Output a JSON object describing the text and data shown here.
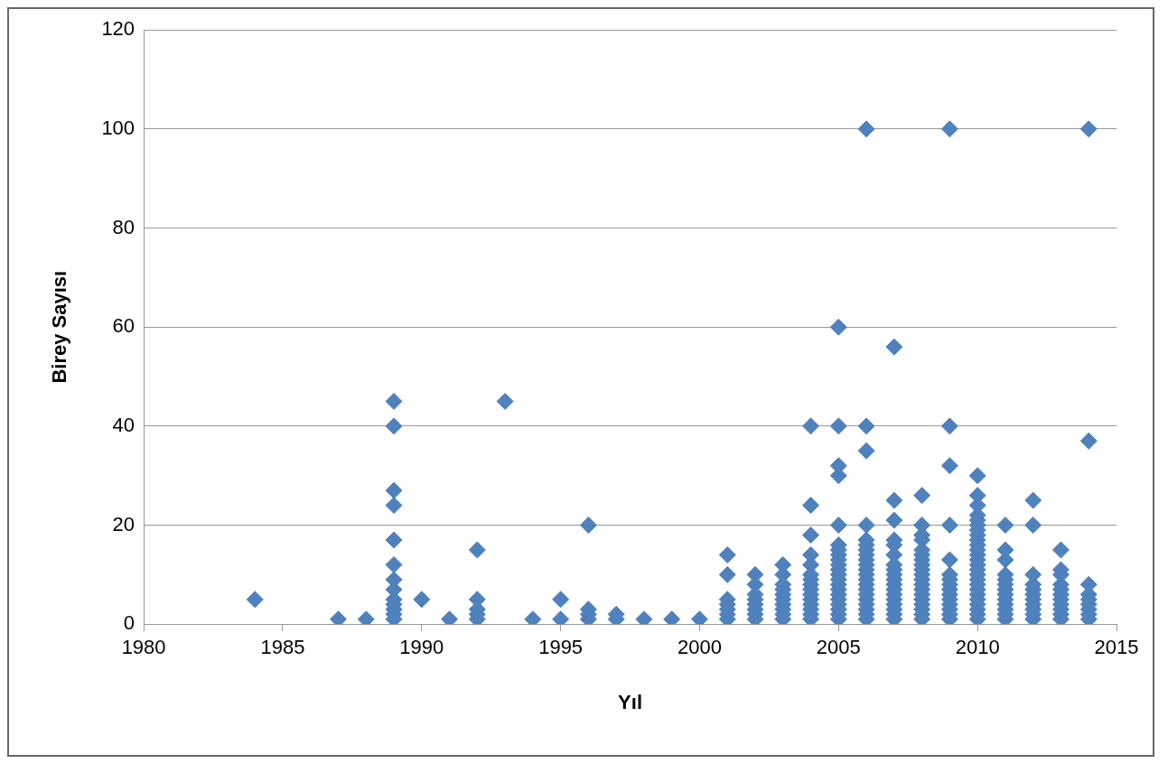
{
  "chart_data": {
    "type": "scatter",
    "xlabel": "Yıl",
    "ylabel": "Birey Sayısı",
    "xlim": [
      1980,
      2015
    ],
    "xticks": [
      1980,
      1985,
      1990,
      1995,
      2000,
      2005,
      2010,
      2015
    ],
    "ylim": [
      0,
      120
    ],
    "yticks": [
      0,
      20,
      40,
      60,
      80,
      100,
      120
    ],
    "grid": "y",
    "legend": false,
    "marker": "diamond",
    "series": [
      {
        "color": "#4f81bd",
        "x": [
          1984,
          1987,
          1988,
          1989,
          1989,
          1989,
          1989,
          1989,
          1989,
          1989,
          1989,
          1989,
          1989,
          1989,
          1989,
          1989,
          1990,
          1991,
          1992,
          1992,
          1992,
          1992,
          1992,
          1993,
          1994,
          1995,
          1995,
          1996,
          1996,
          1996,
          1996,
          1997,
          1997,
          1998,
          1999,
          2000,
          2001,
          2001,
          2001,
          2001,
          2001,
          2001,
          2001,
          2002,
          2002,
          2002,
          2002,
          2002,
          2002,
          2002,
          2002,
          2003,
          2003,
          2003,
          2003,
          2003,
          2003,
          2003,
          2003,
          2003,
          2003,
          2004,
          2004,
          2004,
          2004,
          2004,
          2004,
          2004,
          2004,
          2004,
          2004,
          2004,
          2004,
          2004,
          2004,
          2004,
          2005,
          2005,
          2005,
          2005,
          2005,
          2005,
          2005,
          2005,
          2005,
          2005,
          2005,
          2005,
          2005,
          2005,
          2005,
          2005,
          2005,
          2005,
          2005,
          2005,
          2005,
          2006,
          2006,
          2006,
          2006,
          2006,
          2006,
          2006,
          2006,
          2006,
          2006,
          2006,
          2006,
          2006,
          2006,
          2006,
          2006,
          2006,
          2006,
          2006,
          2006,
          2006,
          2007,
          2007,
          2007,
          2007,
          2007,
          2007,
          2007,
          2007,
          2007,
          2007,
          2007,
          2007,
          2007,
          2007,
          2007,
          2007,
          2007,
          2007,
          2008,
          2008,
          2008,
          2008,
          2008,
          2008,
          2008,
          2008,
          2008,
          2008,
          2008,
          2008,
          2008,
          2008,
          2008,
          2008,
          2008,
          2008,
          2008,
          2009,
          2009,
          2009,
          2009,
          2009,
          2009,
          2009,
          2009,
          2009,
          2009,
          2009,
          2009,
          2009,
          2009,
          2009,
          2010,
          2010,
          2010,
          2010,
          2010,
          2010,
          2010,
          2010,
          2010,
          2010,
          2010,
          2010,
          2010,
          2010,
          2010,
          2010,
          2010,
          2010,
          2010,
          2010,
          2010,
          2010,
          2010,
          2010,
          2010,
          2011,
          2011,
          2011,
          2011,
          2011,
          2011,
          2011,
          2011,
          2011,
          2011,
          2011,
          2011,
          2011,
          2012,
          2012,
          2012,
          2012,
          2012,
          2012,
          2012,
          2012,
          2012,
          2012,
          2012,
          2013,
          2013,
          2013,
          2013,
          2013,
          2013,
          2013,
          2013,
          2013,
          2013,
          2013,
          2014,
          2014,
          2014,
          2014,
          2014,
          2014,
          2014,
          2014,
          2014
        ],
        "values": [
          5,
          1,
          1,
          1,
          2,
          3,
          4,
          5,
          7,
          9,
          12,
          17,
          24,
          27,
          40,
          45,
          5,
          1,
          1,
          2,
          3,
          5,
          15,
          45,
          1,
          1,
          5,
          1,
          2,
          3,
          20,
          1,
          2,
          1,
          1,
          1,
          1,
          2,
          3,
          4,
          5,
          10,
          14,
          1,
          2,
          3,
          4,
          5,
          6,
          8,
          10,
          1,
          2,
          3,
          4,
          5,
          6,
          7,
          8,
          10,
          12,
          1,
          2,
          3,
          4,
          5,
          6,
          7,
          8,
          9,
          10,
          12,
          14,
          18,
          24,
          40,
          1,
          2,
          3,
          4,
          5,
          6,
          7,
          8,
          9,
          10,
          11,
          12,
          13,
          14,
          15,
          16,
          20,
          30,
          32,
          40,
          60,
          1,
          2,
          3,
          4,
          5,
          6,
          7,
          8,
          9,
          10,
          11,
          12,
          13,
          14,
          15,
          16,
          17,
          20,
          35,
          40,
          100,
          1,
          2,
          3,
          4,
          5,
          6,
          7,
          8,
          9,
          10,
          11,
          12,
          14,
          16,
          17,
          21,
          25,
          56,
          1,
          2,
          3,
          4,
          5,
          6,
          7,
          8,
          9,
          10,
          11,
          12,
          13,
          14,
          15,
          17,
          18,
          20,
          26,
          1,
          2,
          3,
          4,
          5,
          6,
          7,
          8,
          9,
          10,
          13,
          20,
          32,
          40,
          100,
          1,
          2,
          3,
          4,
          5,
          6,
          7,
          8,
          9,
          10,
          11,
          12,
          13,
          14,
          15,
          16,
          17,
          18,
          19,
          20,
          21,
          22,
          24,
          26,
          30,
          1,
          2,
          3,
          4,
          5,
          6,
          7,
          8,
          9,
          10,
          13,
          15,
          20,
          1,
          2,
          3,
          4,
          5,
          6,
          7,
          8,
          10,
          20,
          25,
          1,
          2,
          3,
          4,
          5,
          6,
          7,
          8,
          10,
          11,
          15,
          1,
          2,
          3,
          4,
          5,
          6,
          8,
          37,
          100
        ]
      }
    ]
  }
}
